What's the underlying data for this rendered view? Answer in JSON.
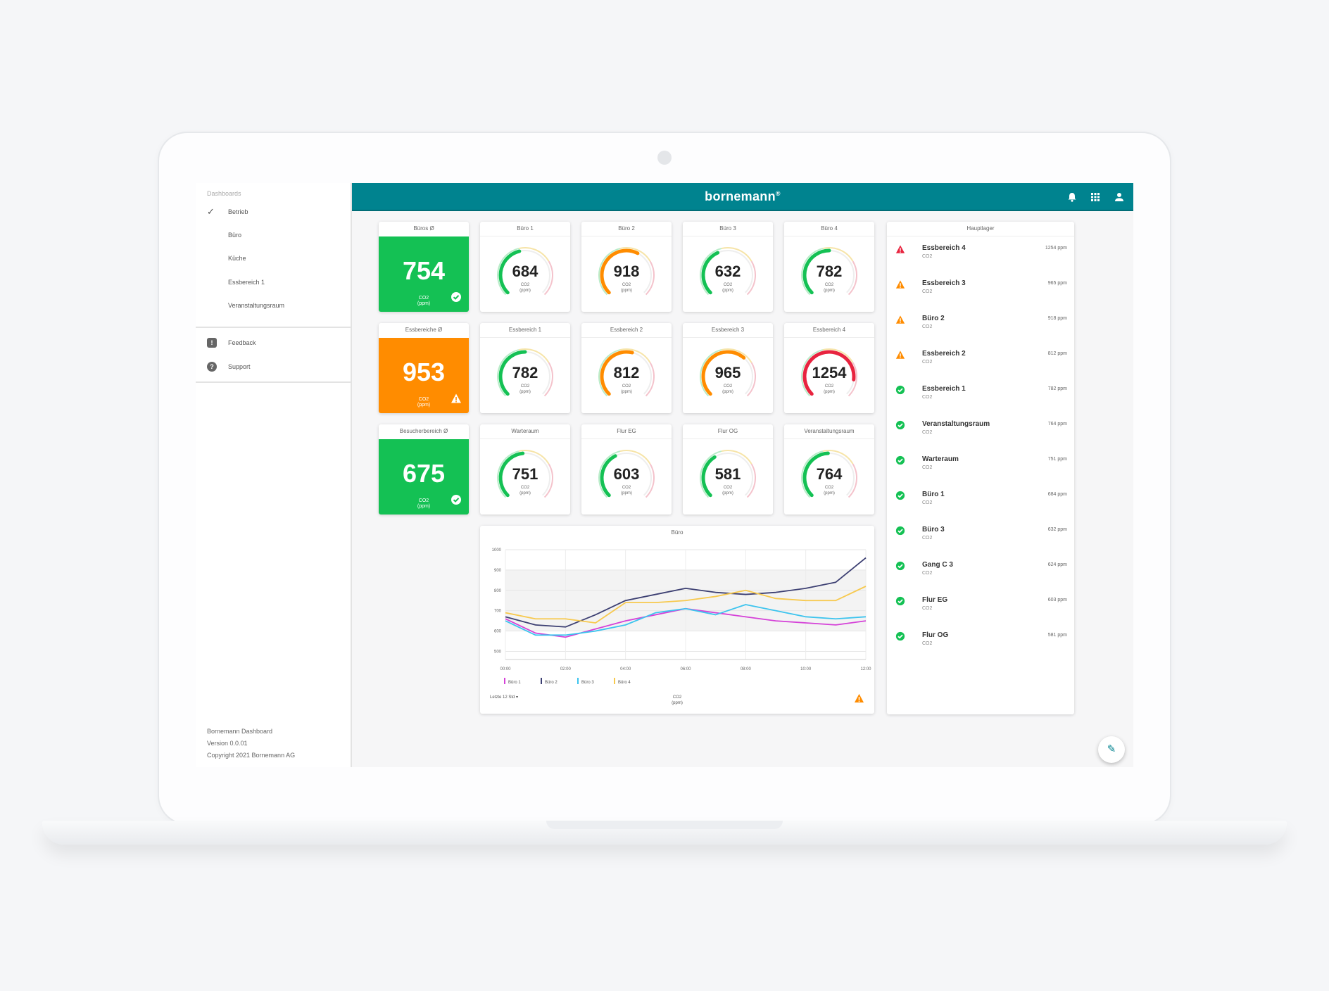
{
  "sidebar": {
    "heading": "Dashboards",
    "items": [
      {
        "label": "Betrieb",
        "checked": true
      },
      {
        "label": "Büro",
        "checked": false
      },
      {
        "label": "Küche",
        "checked": false
      },
      {
        "label": "Essbereich 1",
        "checked": false
      },
      {
        "label": "Veranstaltungsraum",
        "checked": false
      }
    ],
    "links": [
      {
        "label": "Feedback",
        "icon": "feedback-icon"
      },
      {
        "label": "Support",
        "icon": "help-icon"
      }
    ],
    "footer": {
      "app": "Bornemann Dashboard",
      "version": "Version 0.0.01",
      "copyright": "Copyright 2021 Bornemann AG"
    }
  },
  "header": {
    "brand": "bornemann",
    "brand_mark": "®",
    "icons": [
      "bell-icon",
      "apps-grid-icon",
      "account-icon"
    ]
  },
  "colors": {
    "teal": "#00838f",
    "green": "#14c154",
    "orange": "#ff8c00",
    "red": "#e8243f"
  },
  "avg_cards": [
    {
      "title": "Büros Ø",
      "value": "754",
      "unit_top": "CO2",
      "unit_bottom": "(ppm)",
      "status": "ok",
      "color": "#14c154"
    },
    {
      "title": "Essbereiche Ø",
      "value": "953",
      "unit_top": "CO2",
      "unit_bottom": "(ppm)",
      "status": "warning",
      "color": "#ff8c00"
    },
    {
      "title": "Besucherbereich Ø",
      "value": "675",
      "unit_top": "CO2",
      "unit_bottom": "(ppm)",
      "status": "ok",
      "color": "#14c154"
    }
  ],
  "gauges": [
    [
      {
        "title": "Büro 1",
        "value": "684",
        "level": 0.45,
        "color": "#14c154"
      },
      {
        "title": "Büro 2",
        "value": "918",
        "level": 0.6,
        "color": "#ff8c00"
      },
      {
        "title": "Büro 3",
        "value": "632",
        "level": 0.41,
        "color": "#14c154"
      },
      {
        "title": "Büro 4",
        "value": "782",
        "level": 0.5,
        "color": "#14c154"
      }
    ],
    [
      {
        "title": "Essbereich 1",
        "value": "782",
        "level": 0.5,
        "color": "#14c154"
      },
      {
        "title": "Essbereich 2",
        "value": "812",
        "level": 0.55,
        "color": "#ff8c00"
      },
      {
        "title": "Essbereich 3",
        "value": "965",
        "level": 0.65,
        "color": "#ff8c00"
      },
      {
        "title": "Essbereich 4",
        "value": "1254",
        "level": 0.86,
        "color": "#e8243f"
      }
    ],
    [
      {
        "title": "Warteraum",
        "value": "751",
        "level": 0.48,
        "color": "#14c154"
      },
      {
        "title": "Flur EG",
        "value": "603",
        "level": 0.4,
        "color": "#14c154"
      },
      {
        "title": "Flur OG",
        "value": "581",
        "level": 0.38,
        "color": "#14c154"
      },
      {
        "title": "Veranstaltungsraum",
        "value": "764",
        "level": 0.49,
        "color": "#14c154"
      }
    ]
  ],
  "gauge_unit": {
    "top": "CO2",
    "bottom": "(ppm)"
  },
  "chart": {
    "title": "Büro",
    "range_label": "Letzte 12 Std",
    "unit_top": "CO2",
    "unit_bottom": "(ppm)"
  },
  "chart_data": {
    "type": "line",
    "x": [
      "00:00",
      "01:00",
      "02:00",
      "03:00",
      "04:00",
      "05:00",
      "06:00",
      "07:00",
      "08:00",
      "09:00",
      "10:00",
      "11:00",
      "12:00"
    ],
    "xticks": [
      "00:00",
      "02:00",
      "04:00",
      "06:00",
      "08:00",
      "10:00",
      "12:00"
    ],
    "yticks": [
      "500",
      "600",
      "700",
      "800",
      "900",
      "1000"
    ],
    "ylim": [
      460,
      1000
    ],
    "grid": true,
    "legend": "bottom-left",
    "series": [
      {
        "name": "Büro 1",
        "color": "#d542d8",
        "values": [
          660,
          590,
          570,
          610,
          650,
          680,
          710,
          690,
          670,
          650,
          640,
          630,
          650
        ]
      },
      {
        "name": "Büro 2",
        "color": "#3c3f72",
        "values": [
          670,
          630,
          620,
          680,
          750,
          780,
          810,
          790,
          780,
          790,
          810,
          840,
          960
        ]
      },
      {
        "name": "Büro 3",
        "color": "#3dc4ee",
        "values": [
          650,
          580,
          580,
          600,
          630,
          690,
          710,
          680,
          730,
          700,
          670,
          660,
          670
        ]
      },
      {
        "name": "Büro 4",
        "color": "#f7c94e",
        "values": [
          690,
          660,
          660,
          640,
          740,
          740,
          750,
          770,
          800,
          760,
          750,
          750,
          820
        ]
      }
    ]
  },
  "alerts": {
    "title": "Hauptlager",
    "items": [
      {
        "name": "Essbereich 4",
        "sub": "CO2",
        "value": "1254 ppm",
        "status": "critical"
      },
      {
        "name": "Essbereich 3",
        "sub": "CO2",
        "value": "965 ppm",
        "status": "warning"
      },
      {
        "name": "Büro 2",
        "sub": "CO2",
        "value": "918 ppm",
        "status": "warning"
      },
      {
        "name": "Essbereich 2",
        "sub": "CO2",
        "value": "812 ppm",
        "status": "warning"
      },
      {
        "name": "Essbereich 1",
        "sub": "CO2",
        "value": "782 ppm",
        "status": "ok"
      },
      {
        "name": "Veranstaltungsraum",
        "sub": "CO2",
        "value": "764 ppm",
        "status": "ok"
      },
      {
        "name": "Warteraum",
        "sub": "CO2",
        "value": "751 ppm",
        "status": "ok"
      },
      {
        "name": "Büro 1",
        "sub": "CO2",
        "value": "684 ppm",
        "status": "ok"
      },
      {
        "name": "Büro 3",
        "sub": "CO2",
        "value": "632 ppm",
        "status": "ok"
      },
      {
        "name": "Gang C 3",
        "sub": "CO2",
        "value": "624 ppm",
        "status": "ok"
      },
      {
        "name": "Flur EG",
        "sub": "CO2",
        "value": "603 ppm",
        "status": "ok"
      },
      {
        "name": "Flur OG",
        "sub": "CO2",
        "value": "581 ppm",
        "status": "ok"
      }
    ]
  },
  "fab_icon": "edit-pencil-icon"
}
